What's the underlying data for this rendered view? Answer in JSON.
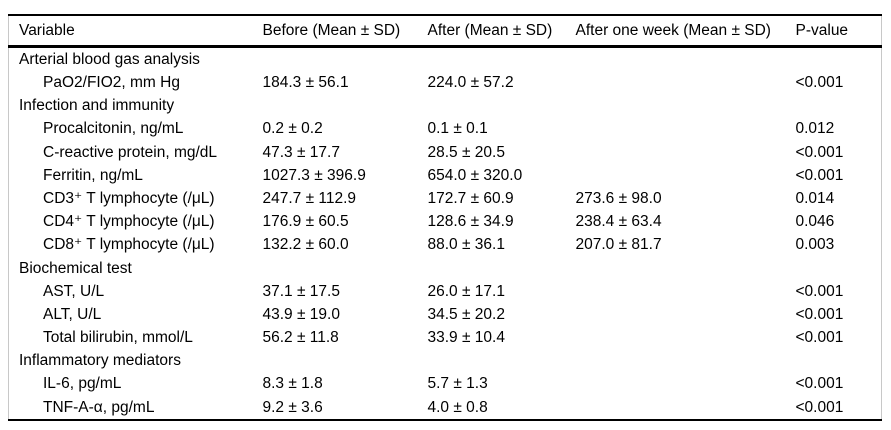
{
  "table": {
    "columns": [
      "Variable",
      "Before (Mean ± SD)",
      "After (Mean ± SD)",
      "After one week (Mean ± SD)",
      "P-value"
    ],
    "rows": [
      {
        "type": "section",
        "label": "Arterial blood gas analysis"
      },
      {
        "type": "item",
        "label": "PaO2/FIO2, mm Hg",
        "before": "184.3 ± 56.1",
        "after": "224.0 ± 57.2",
        "week": "",
        "p": "<0.001"
      },
      {
        "type": "section",
        "label": "Infection and immunity"
      },
      {
        "type": "item",
        "label": "Procalcitonin, ng/mL",
        "before": "0.2 ± 0.2",
        "after": "0.1 ± 0.1",
        "week": "",
        "p": "0.012"
      },
      {
        "type": "item",
        "label": "C-reactive protein, mg/dL",
        "before": "47.3 ± 17.7",
        "after": "28.5 ± 20.5",
        "week": "",
        "p": "<0.001"
      },
      {
        "type": "item",
        "label": "Ferritin, ng/mL",
        "before": "1027.3 ± 396.9",
        "after": "654.0 ± 320.0",
        "week": "",
        "p": "<0.001"
      },
      {
        "type": "item",
        "label": "CD3⁺ T lymphocyte (/μL)",
        "before": "247.7 ± 112.9",
        "after": "172.7 ± 60.9",
        "week": "273.6 ± 98.0",
        "p": "0.014"
      },
      {
        "type": "item",
        "label": "CD4⁺ T lymphocyte (/μL)",
        "before": "176.9 ± 60.5",
        "after": "128.6 ± 34.9",
        "week": "238.4 ± 63.4",
        "p": "0.046"
      },
      {
        "type": "item",
        "label": "CD8⁺ T lymphocyte (/μL)",
        "before": "132.2 ± 60.0",
        "after": "88.0 ± 36.1",
        "week": "207.0 ± 81.7",
        "p": "0.003"
      },
      {
        "type": "section",
        "label": "Biochemical test"
      },
      {
        "type": "item",
        "label": "AST, U/L",
        "before": "37.1 ± 17.5",
        "after": "26.0 ± 17.1",
        "week": "",
        "p": "<0.001"
      },
      {
        "type": "item",
        "label": "ALT, U/L",
        "before": "43.9 ± 19.0",
        "after": "34.5 ± 20.2",
        "week": "",
        "p": "<0.001"
      },
      {
        "type": "item",
        "label": "Total bilirubin, mmol/L",
        "before": "56.2 ± 11.8",
        "after": "33.9 ± 10.4",
        "week": "",
        "p": "<0.001"
      },
      {
        "type": "section",
        "label": "Inflammatory mediators"
      },
      {
        "type": "item",
        "label": "IL-6, pg/mL",
        "before": "8.3 ± 1.8",
        "after": "5.7 ± 1.3",
        "week": "",
        "p": "<0.001"
      },
      {
        "type": "item",
        "label": "TNF-A-α, pg/mL",
        "before": "9.2 ± 3.6",
        "after": "4.0 ± 0.8",
        "week": "",
        "p": "<0.001"
      }
    ],
    "colors": {
      "text": "#000000",
      "rule": "#000000",
      "frame": "#c8c8c8",
      "background": "#ffffff"
    }
  }
}
